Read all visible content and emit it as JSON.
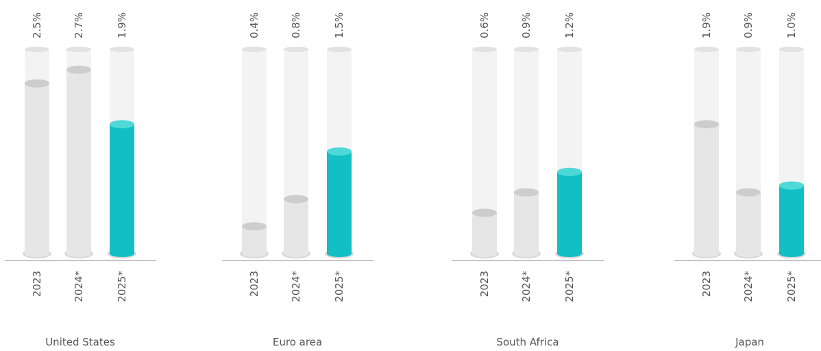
{
  "chart_data": [
    {
      "type": "bar",
      "title": "United States",
      "categories": [
        "2023",
        "2024*",
        "2025*"
      ],
      "values": [
        2.5,
        2.7,
        1.9
      ],
      "value_labels": [
        "2.5%",
        "2.7%",
        "1.9%"
      ],
      "colors": [
        "#e6e6e6",
        "#e6e6e6",
        "#12bfc4"
      ],
      "ylim": [
        0,
        3
      ]
    },
    {
      "type": "bar",
      "title": "Euro area",
      "categories": [
        "2023",
        "2024*",
        "2025*"
      ],
      "values": [
        0.4,
        0.8,
        1.5
      ],
      "value_labels": [
        "0.4%",
        "0.8%",
        "1.5%"
      ],
      "colors": [
        "#e6e6e6",
        "#e6e6e6",
        "#12bfc4"
      ],
      "ylim": [
        0,
        3
      ]
    },
    {
      "type": "bar",
      "title": "South Africa",
      "categories": [
        "2023",
        "2024*",
        "2025*"
      ],
      "values": [
        0.6,
        0.9,
        1.2
      ],
      "value_labels": [
        "0.6%",
        "0.9%",
        "1.2%"
      ],
      "colors": [
        "#e6e6e6",
        "#e6e6e6",
        "#12bfc4"
      ],
      "ylim": [
        0,
        3
      ]
    },
    {
      "type": "bar",
      "title": "Japan",
      "categories": [
        "2023",
        "2024*",
        "2025*"
      ],
      "values": [
        1.9,
        0.9,
        1.0
      ],
      "value_labels": [
        "1.9%",
        "0.9%",
        "1.0%"
      ],
      "colors": [
        "#e6e6e6",
        "#e6e6e6",
        "#12bfc4"
      ],
      "ylim": [
        0,
        3
      ]
    }
  ]
}
